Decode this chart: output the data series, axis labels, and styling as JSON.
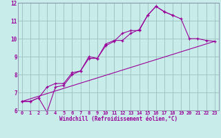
{
  "background_color": "#c8ecea",
  "grid_color": "#9bbfbd",
  "line_color": "#990099",
  "spine_color": "#7a7a9a",
  "xlim": [
    -0.5,
    23.5
  ],
  "ylim": [
    6,
    12
  ],
  "xlabel": "Windchill (Refroidissement éolien,°C)",
  "xticks": [
    0,
    1,
    2,
    3,
    4,
    5,
    6,
    7,
    8,
    9,
    10,
    11,
    12,
    13,
    14,
    15,
    16,
    17,
    18,
    19,
    20,
    21,
    22,
    23
  ],
  "yticks": [
    6,
    7,
    8,
    9,
    10,
    11,
    12
  ],
  "line1_x": [
    0,
    1,
    2,
    3,
    4,
    5,
    6,
    7,
    8,
    9,
    10,
    11,
    12,
    13,
    14,
    15,
    16,
    17,
    18,
    19,
    20,
    21,
    22,
    23
  ],
  "line1_y": [
    6.5,
    6.5,
    6.7,
    7.3,
    7.5,
    7.5,
    8.1,
    8.2,
    8.9,
    8.9,
    9.7,
    9.9,
    9.9,
    10.3,
    10.5,
    11.3,
    11.8,
    11.5,
    11.3,
    11.1,
    10.0,
    10.0,
    9.9,
    9.85
  ],
  "line2_x": [
    0,
    1,
    2,
    3,
    4,
    5,
    6,
    7,
    8,
    9,
    10,
    11,
    12,
    13,
    14,
    15,
    16,
    17,
    18
  ],
  "line2_y": [
    6.5,
    6.5,
    6.7,
    5.9,
    7.3,
    7.4,
    8.0,
    8.2,
    9.0,
    8.9,
    9.6,
    9.85,
    10.3,
    10.45,
    10.45,
    11.3,
    11.8,
    11.5,
    11.3
  ],
  "line3_x": [
    0,
    23
  ],
  "line3_y": [
    6.5,
    9.85
  ],
  "figsize": [
    3.2,
    2.0
  ],
  "dpi": 100
}
